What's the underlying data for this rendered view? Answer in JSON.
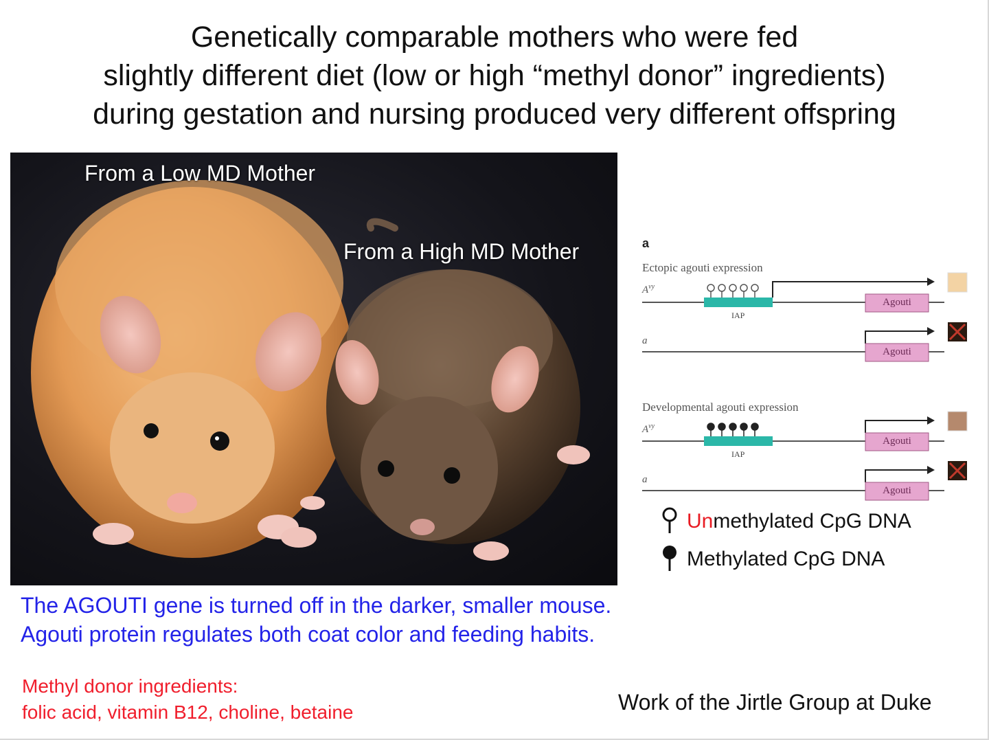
{
  "title": {
    "lines": [
      "Genetically comparable mothers who were fed",
      "slightly different diet (low or high “methyl donor” ingredients)",
      "during gestation and nursing produced very different offspring"
    ]
  },
  "photo": {
    "label_low": "From a Low MD Mother",
    "label_high": "From a High MD Mother",
    "colors": {
      "yellow_mouse": "#e9a45f",
      "brown_mouse": "#5a4330",
      "background": "#14141a"
    }
  },
  "diagram": {
    "panel_letter": "a",
    "ectopic": {
      "title": "Ectopic agouti expression",
      "allele_top": "A^vy",
      "iap": "IAP",
      "gene_top": "Agouti",
      "allele_bottom": "a",
      "gene_bottom": "Agouti"
    },
    "developmental": {
      "title": "Developmental agouti expression",
      "allele_top": "A^vy",
      "iap": "IAP",
      "gene_top": "Agouti",
      "allele_bottom": "a",
      "gene_bottom": "Agouti"
    },
    "colors": {
      "iap": "#2bb7a8",
      "gene_box": "#e6a6cf",
      "yellow_coat": "#f3d3a4",
      "brown_coat": "#b5896d",
      "x_mark": "#c0392b"
    }
  },
  "legend": {
    "unmethylated_prefix": "Un",
    "unmethylated_rest": "methylated CpG DNA",
    "methylated": "Methylated CpG DNA"
  },
  "notes": {
    "blue_line1": "The AGOUTI gene is turned off in the darker, smaller mouse.",
    "blue_line2": "Agouti protein regulates both coat color and feeding habits.",
    "red_line1": "Methyl donor ingredients:",
    "red_line2": "folic acid, vitamin B12, choline, betaine"
  },
  "credit": "Work of the Jirtle Group at Duke"
}
